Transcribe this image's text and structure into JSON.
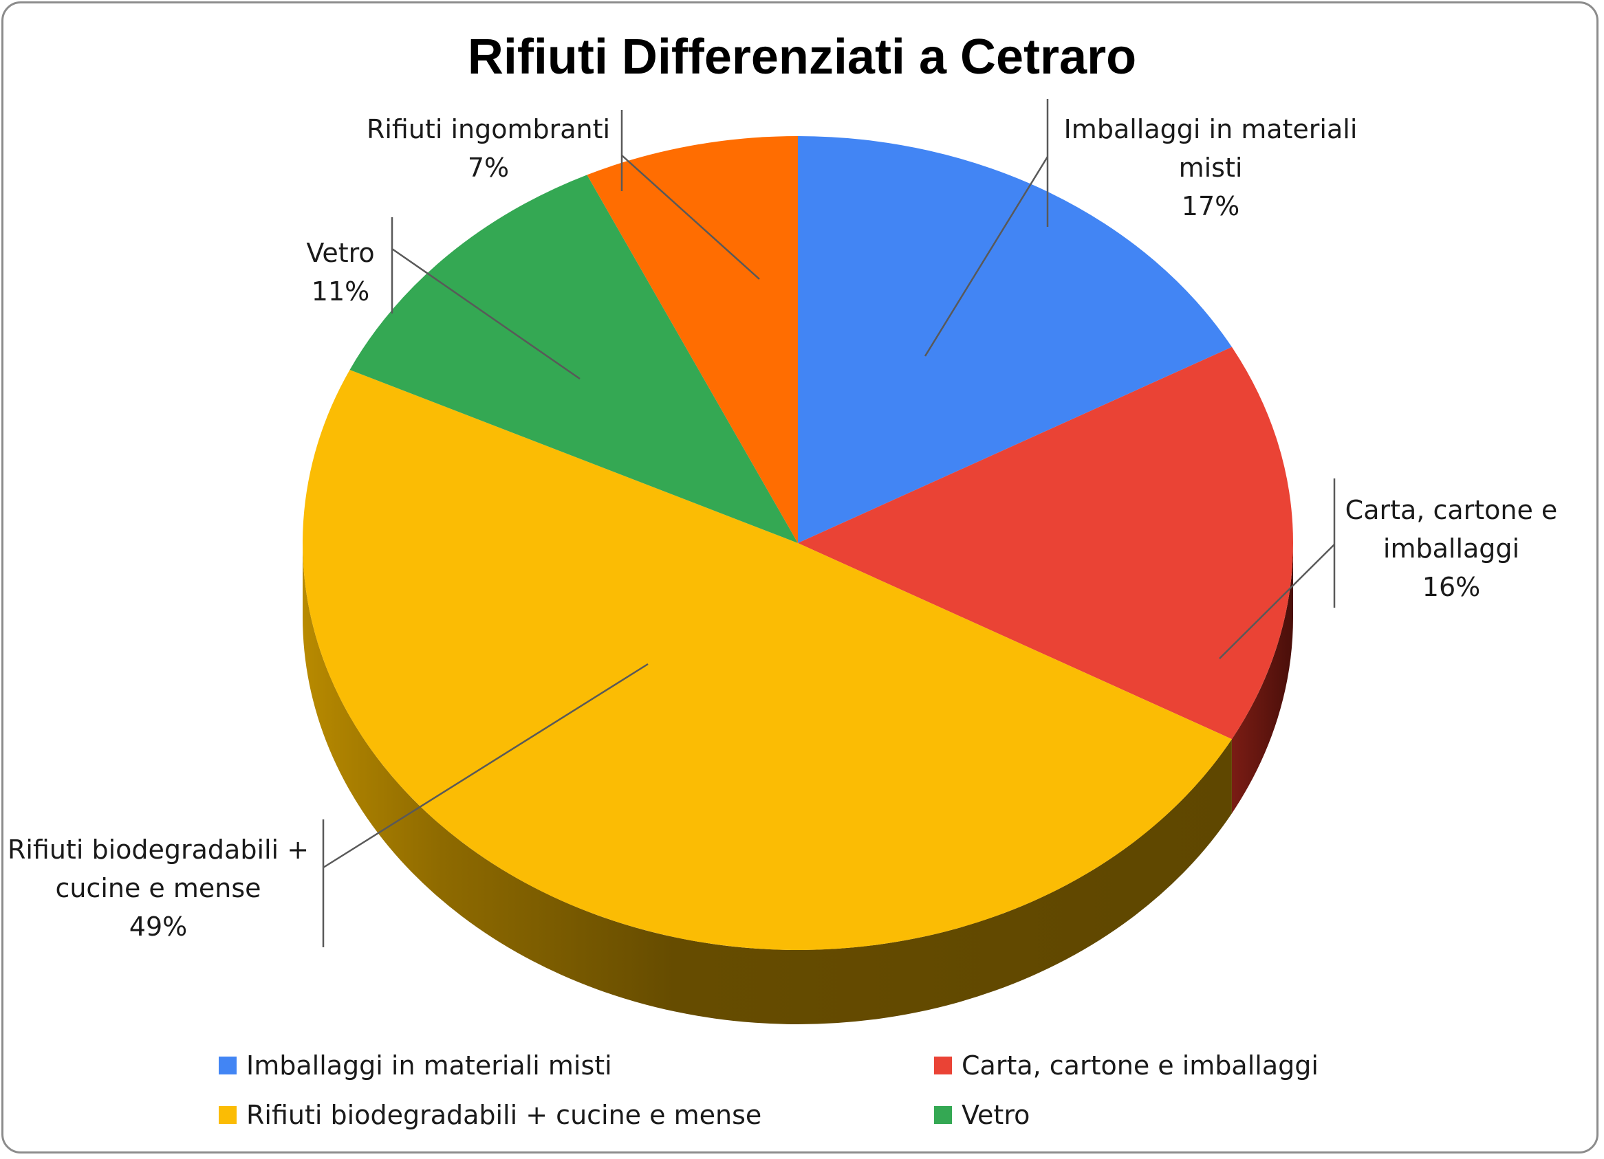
{
  "chart_data": {
    "type": "pie",
    "title": "Rifiuti Differenziati a Cetraro",
    "is_3d": true,
    "slices": [
      {
        "name": "Imballaggi in materiali misti",
        "percent": 17,
        "label_lines": [
          "Imballaggi in materiali",
          "misti"
        ],
        "pct_label": "17%",
        "color": "#4285f4"
      },
      {
        "name": "Carta, cartone e imballaggi",
        "percent": 16,
        "label_lines": [
          "Carta, cartone e",
          "imballaggi"
        ],
        "pct_label": "16%",
        "color": "#ea4335"
      },
      {
        "name": "Rifiuti biodegradabili + cucine e mense",
        "percent": 49,
        "label_lines": [
          "Rifiuti biodegradabili +",
          "cucine e mense"
        ],
        "pct_label": "49%",
        "color": "#fbbc04"
      },
      {
        "name": "Vetro",
        "percent": 11,
        "label_lines": [
          "Vetro"
        ],
        "pct_label": "11%",
        "color": "#34a853"
      },
      {
        "name": "Rifiuti ingombranti",
        "percent": 7,
        "label_lines": [
          "Rifiuti ingombranti"
        ],
        "pct_label": "7%",
        "color": "#ff6d01"
      }
    ],
    "legend": {
      "placement": "bottom",
      "items": [
        {
          "label": "Imballaggi in materiali misti",
          "color": "#4285f4"
        },
        {
          "label": "Carta, cartone e imballaggi",
          "color": "#ea4335"
        },
        {
          "label": "Rifiuti biodegradabili + cucine e mense",
          "color": "#fbbc04"
        },
        {
          "label": "Vetro",
          "color": "#34a853"
        }
      ]
    }
  }
}
